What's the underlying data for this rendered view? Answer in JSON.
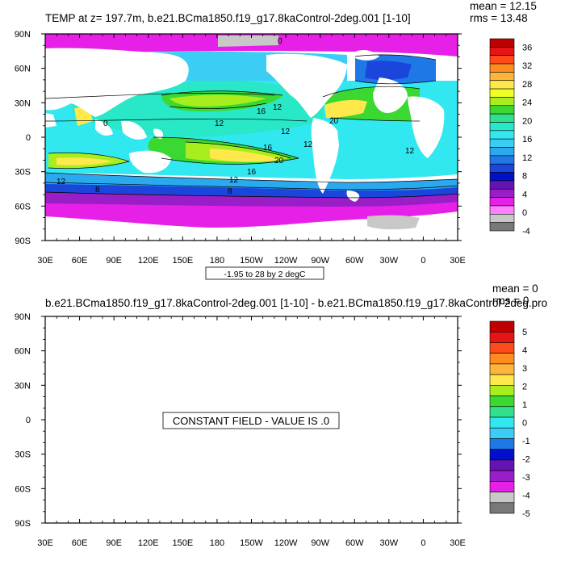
{
  "chart_data": [
    {
      "type": "heatmap",
      "title": "TEMP at z= 197.7m, b.e21.BCma1850.f19_g17.8kaControl-2deg.001 [1-10]",
      "stats": {
        "mean": "mean = 12.15",
        "rms": "rms = 13.48"
      },
      "x_ticks": [
        "30E",
        "60E",
        "90E",
        "120E",
        "150E",
        "180",
        "150W",
        "120W",
        "90W",
        "60W",
        "30W",
        "0",
        "30E"
      ],
      "y_ticks": [
        "90N",
        "60N",
        "30N",
        "0",
        "30S",
        "60S",
        "90S"
      ],
      "colorbar_labels": [
        "36",
        "32",
        "28",
        "24",
        "20",
        "16",
        "12",
        "8",
        "4",
        "0",
        "-4"
      ],
      "colorbar_colors": [
        "#c00000",
        "#e61414",
        "#ff4a1a",
        "#ff8c1e",
        "#ffb43c",
        "#ffe84c",
        "#f0ff28",
        "#a8ee1e",
        "#3cd832",
        "#32e08c",
        "#28e8c8",
        "#32e8f0",
        "#3ccdf5",
        "#2aa9ee",
        "#2078e6",
        "#1a46dc",
        "#0010c8",
        "#6414b4",
        "#9a1ec8",
        "#e620e6",
        "#ff80ff",
        "#c8c8c8",
        "#787878"
      ],
      "contour_labels": [
        "0",
        "16",
        "12",
        "12",
        "12",
        "16",
        "20",
        "12",
        "8",
        "8",
        "12",
        "16",
        "20",
        "12",
        "12",
        "0"
      ],
      "contour_info": "-1.95 to 28 by 2 degC",
      "xlim": [
        "30E",
        "30E"
      ],
      "ylim": [
        "90S",
        "90N"
      ]
    },
    {
      "type": "heatmap",
      "title": "b.e21.BCma1850.f19_g17.8kaControl-2deg.001 [1-10] - b.e21.BCma1850.f19_g17.8kaControl-2deg.pro",
      "stats": {
        "mean": "mean = 0",
        "rms": "rms = 0"
      },
      "x_ticks": [
        "30E",
        "60E",
        "90E",
        "120E",
        "150E",
        "180",
        "150W",
        "120W",
        "90W",
        "60W",
        "30W",
        "0",
        "30E"
      ],
      "y_ticks": [
        "90N",
        "60N",
        "30N",
        "0",
        "30S",
        "60S",
        "90S"
      ],
      "colorbar_labels": [
        "5",
        "4",
        "3",
        "2",
        "1",
        "0",
        "-1",
        "-2",
        "-3",
        "-4",
        "-5"
      ],
      "colorbar_colors": [
        "#c00000",
        "#e61414",
        "#ff4a1a",
        "#ff8c1e",
        "#ffb43c",
        "#ffe84c",
        "#a8ee1e",
        "#3cd832",
        "#32e08c",
        "#32e8f0",
        "#3ccdf5",
        "#2078e6",
        "#0010c8",
        "#6414b4",
        "#9a1ec8",
        "#e620e6",
        "#c8c8c8",
        "#787878"
      ],
      "message": "CONSTANT FIELD - VALUE IS .0"
    }
  ]
}
